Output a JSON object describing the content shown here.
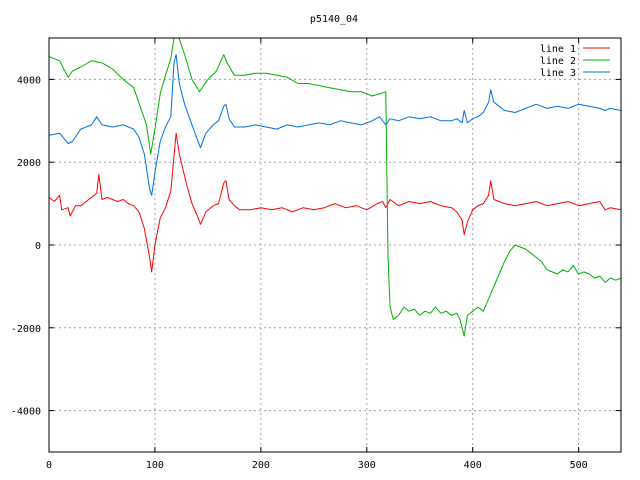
{
  "chart_data": {
    "type": "line",
    "title": "p5140_04",
    "xlabel": "",
    "ylabel": "",
    "xlim": [
      0,
      540
    ],
    "ylim": [
      -5000,
      5000
    ],
    "x_ticks": [
      0,
      100,
      200,
      300,
      400,
      500
    ],
    "y_ticks": [
      -4000,
      -2000,
      0,
      2000,
      4000
    ],
    "grid": true,
    "legend_position": "top-right",
    "series": [
      {
        "name": "line 1",
        "color": "#ff0000",
        "points": [
          [
            0,
            1150
          ],
          [
            5,
            1050
          ],
          [
            10,
            1200
          ],
          [
            12,
            850
          ],
          [
            18,
            900
          ],
          [
            20,
            700
          ],
          [
            25,
            950
          ],
          [
            30,
            950
          ],
          [
            35,
            1050
          ],
          [
            40,
            1150
          ],
          [
            45,
            1250
          ],
          [
            47,
            1700
          ],
          [
            50,
            1100
          ],
          [
            55,
            1150
          ],
          [
            60,
            1100
          ],
          [
            65,
            1050
          ],
          [
            70,
            1100
          ],
          [
            75,
            1000
          ],
          [
            80,
            950
          ],
          [
            85,
            800
          ],
          [
            90,
            400
          ],
          [
            95,
            -300
          ],
          [
            97,
            -650
          ],
          [
            100,
            0
          ],
          [
            105,
            650
          ],
          [
            110,
            900
          ],
          [
            115,
            1300
          ],
          [
            120,
            2700
          ],
          [
            123,
            2200
          ],
          [
            130,
            1450
          ],
          [
            135,
            1000
          ],
          [
            140,
            700
          ],
          [
            143,
            500
          ],
          [
            148,
            800
          ],
          [
            155,
            950
          ],
          [
            160,
            1000
          ],
          [
            165,
            1500
          ],
          [
            167,
            1550
          ],
          [
            170,
            1100
          ],
          [
            175,
            950
          ],
          [
            180,
            850
          ],
          [
            190,
            850
          ],
          [
            200,
            900
          ],
          [
            210,
            850
          ],
          [
            220,
            900
          ],
          [
            230,
            800
          ],
          [
            240,
            900
          ],
          [
            250,
            850
          ],
          [
            260,
            900
          ],
          [
            270,
            1000
          ],
          [
            280,
            900
          ],
          [
            290,
            950
          ],
          [
            300,
            850
          ],
          [
            310,
            1000
          ],
          [
            315,
            1050
          ],
          [
            318,
            900
          ],
          [
            322,
            1100
          ],
          [
            330,
            950
          ],
          [
            340,
            1050
          ],
          [
            350,
            1000
          ],
          [
            360,
            1050
          ],
          [
            370,
            950
          ],
          [
            380,
            900
          ],
          [
            385,
            800
          ],
          [
            390,
            600
          ],
          [
            392,
            250
          ],
          [
            395,
            550
          ],
          [
            400,
            850
          ],
          [
            405,
            950
          ],
          [
            410,
            1000
          ],
          [
            415,
            1200
          ],
          [
            417,
            1550
          ],
          [
            420,
            1100
          ],
          [
            430,
            1000
          ],
          [
            440,
            950
          ],
          [
            450,
            1000
          ],
          [
            460,
            1050
          ],
          [
            470,
            950
          ],
          [
            480,
            1000
          ],
          [
            490,
            1050
          ],
          [
            500,
            950
          ],
          [
            510,
            1000
          ],
          [
            520,
            1050
          ],
          [
            525,
            850
          ],
          [
            530,
            900
          ],
          [
            540,
            850
          ]
        ]
      },
      {
        "name": "line 2",
        "color": "#00b000",
        "points": [
          [
            0,
            4550
          ],
          [
            10,
            4450
          ],
          [
            18,
            4050
          ],
          [
            22,
            4200
          ],
          [
            30,
            4300
          ],
          [
            40,
            4450
          ],
          [
            50,
            4400
          ],
          [
            60,
            4250
          ],
          [
            70,
            4000
          ],
          [
            80,
            3800
          ],
          [
            88,
            3200
          ],
          [
            92,
            2900
          ],
          [
            96,
            2200
          ],
          [
            100,
            2800
          ],
          [
            105,
            3650
          ],
          [
            110,
            4100
          ],
          [
            115,
            4500
          ],
          [
            118,
            5000
          ],
          [
            122,
            5050
          ],
          [
            128,
            4600
          ],
          [
            135,
            4000
          ],
          [
            142,
            3700
          ],
          [
            150,
            4000
          ],
          [
            158,
            4200
          ],
          [
            165,
            4600
          ],
          [
            168,
            4400
          ],
          [
            175,
            4100
          ],
          [
            185,
            4100
          ],
          [
            195,
            4150
          ],
          [
            205,
            4150
          ],
          [
            215,
            4100
          ],
          [
            225,
            4050
          ],
          [
            235,
            3900
          ],
          [
            245,
            3900
          ],
          [
            255,
            3850
          ],
          [
            265,
            3800
          ],
          [
            275,
            3750
          ],
          [
            285,
            3700
          ],
          [
            295,
            3700
          ],
          [
            305,
            3600
          ],
          [
            312,
            3650
          ],
          [
            318,
            3700
          ],
          [
            320,
            -300
          ],
          [
            322,
            -1500
          ],
          [
            325,
            -1800
          ],
          [
            330,
            -1700
          ],
          [
            335,
            -1500
          ],
          [
            340,
            -1600
          ],
          [
            345,
            -1550
          ],
          [
            350,
            -1700
          ],
          [
            355,
            -1600
          ],
          [
            360,
            -1650
          ],
          [
            365,
            -1500
          ],
          [
            370,
            -1650
          ],
          [
            375,
            -1600
          ],
          [
            380,
            -1700
          ],
          [
            385,
            -1650
          ],
          [
            388,
            -1800
          ],
          [
            392,
            -2200
          ],
          [
            395,
            -1700
          ],
          [
            400,
            -1600
          ],
          [
            405,
            -1500
          ],
          [
            410,
            -1600
          ],
          [
            415,
            -1300
          ],
          [
            420,
            -1000
          ],
          [
            425,
            -700
          ],
          [
            430,
            -400
          ],
          [
            435,
            -150
          ],
          [
            440,
            0
          ],
          [
            445,
            -50
          ],
          [
            450,
            -100
          ],
          [
            455,
            -200
          ],
          [
            460,
            -300
          ],
          [
            465,
            -400
          ],
          [
            470,
            -600
          ],
          [
            475,
            -650
          ],
          [
            480,
            -700
          ],
          [
            485,
            -600
          ],
          [
            490,
            -650
          ],
          [
            495,
            -500
          ],
          [
            500,
            -700
          ],
          [
            505,
            -650
          ],
          [
            510,
            -700
          ],
          [
            515,
            -800
          ],
          [
            520,
            -750
          ],
          [
            525,
            -900
          ],
          [
            530,
            -800
          ],
          [
            535,
            -850
          ],
          [
            540,
            -800
          ]
        ]
      },
      {
        "name": "line 3",
        "color": "#0070e0",
        "points": [
          [
            0,
            2650
          ],
          [
            10,
            2700
          ],
          [
            18,
            2450
          ],
          [
            22,
            2500
          ],
          [
            30,
            2800
          ],
          [
            40,
            2900
          ],
          [
            45,
            3100
          ],
          [
            50,
            2900
          ],
          [
            60,
            2850
          ],
          [
            70,
            2900
          ],
          [
            80,
            2800
          ],
          [
            85,
            2600
          ],
          [
            90,
            2200
          ],
          [
            95,
            1350
          ],
          [
            97,
            1200
          ],
          [
            100,
            1750
          ],
          [
            105,
            2500
          ],
          [
            110,
            2850
          ],
          [
            115,
            3100
          ],
          [
            118,
            4400
          ],
          [
            120,
            4600
          ],
          [
            123,
            3900
          ],
          [
            128,
            3400
          ],
          [
            135,
            2900
          ],
          [
            140,
            2550
          ],
          [
            143,
            2350
          ],
          [
            148,
            2700
          ],
          [
            155,
            2900
          ],
          [
            160,
            3000
          ],
          [
            165,
            3350
          ],
          [
            167,
            3400
          ],
          [
            170,
            3050
          ],
          [
            175,
            2850
          ],
          [
            185,
            2850
          ],
          [
            195,
            2900
          ],
          [
            205,
            2850
          ],
          [
            215,
            2800
          ],
          [
            225,
            2900
          ],
          [
            235,
            2850
          ],
          [
            245,
            2900
          ],
          [
            255,
            2950
          ],
          [
            265,
            2900
          ],
          [
            275,
            3000
          ],
          [
            285,
            2950
          ],
          [
            295,
            2900
          ],
          [
            305,
            3000
          ],
          [
            312,
            3100
          ],
          [
            318,
            2900
          ],
          [
            322,
            3050
          ],
          [
            330,
            3000
          ],
          [
            340,
            3100
          ],
          [
            350,
            3050
          ],
          [
            360,
            3100
          ],
          [
            370,
            3000
          ],
          [
            380,
            3000
          ],
          [
            385,
            3050
          ],
          [
            390,
            2950
          ],
          [
            392,
            3250
          ],
          [
            395,
            2950
          ],
          [
            400,
            3050
          ],
          [
            405,
            3100
          ],
          [
            410,
            3200
          ],
          [
            415,
            3450
          ],
          [
            417,
            3750
          ],
          [
            420,
            3450
          ],
          [
            430,
            3250
          ],
          [
            440,
            3200
          ],
          [
            450,
            3300
          ],
          [
            460,
            3400
          ],
          [
            470,
            3300
          ],
          [
            480,
            3350
          ],
          [
            490,
            3300
          ],
          [
            500,
            3400
          ],
          [
            510,
            3350
          ],
          [
            520,
            3300
          ],
          [
            525,
            3250
          ],
          [
            530,
            3300
          ],
          [
            540,
            3250
          ]
        ]
      }
    ]
  }
}
